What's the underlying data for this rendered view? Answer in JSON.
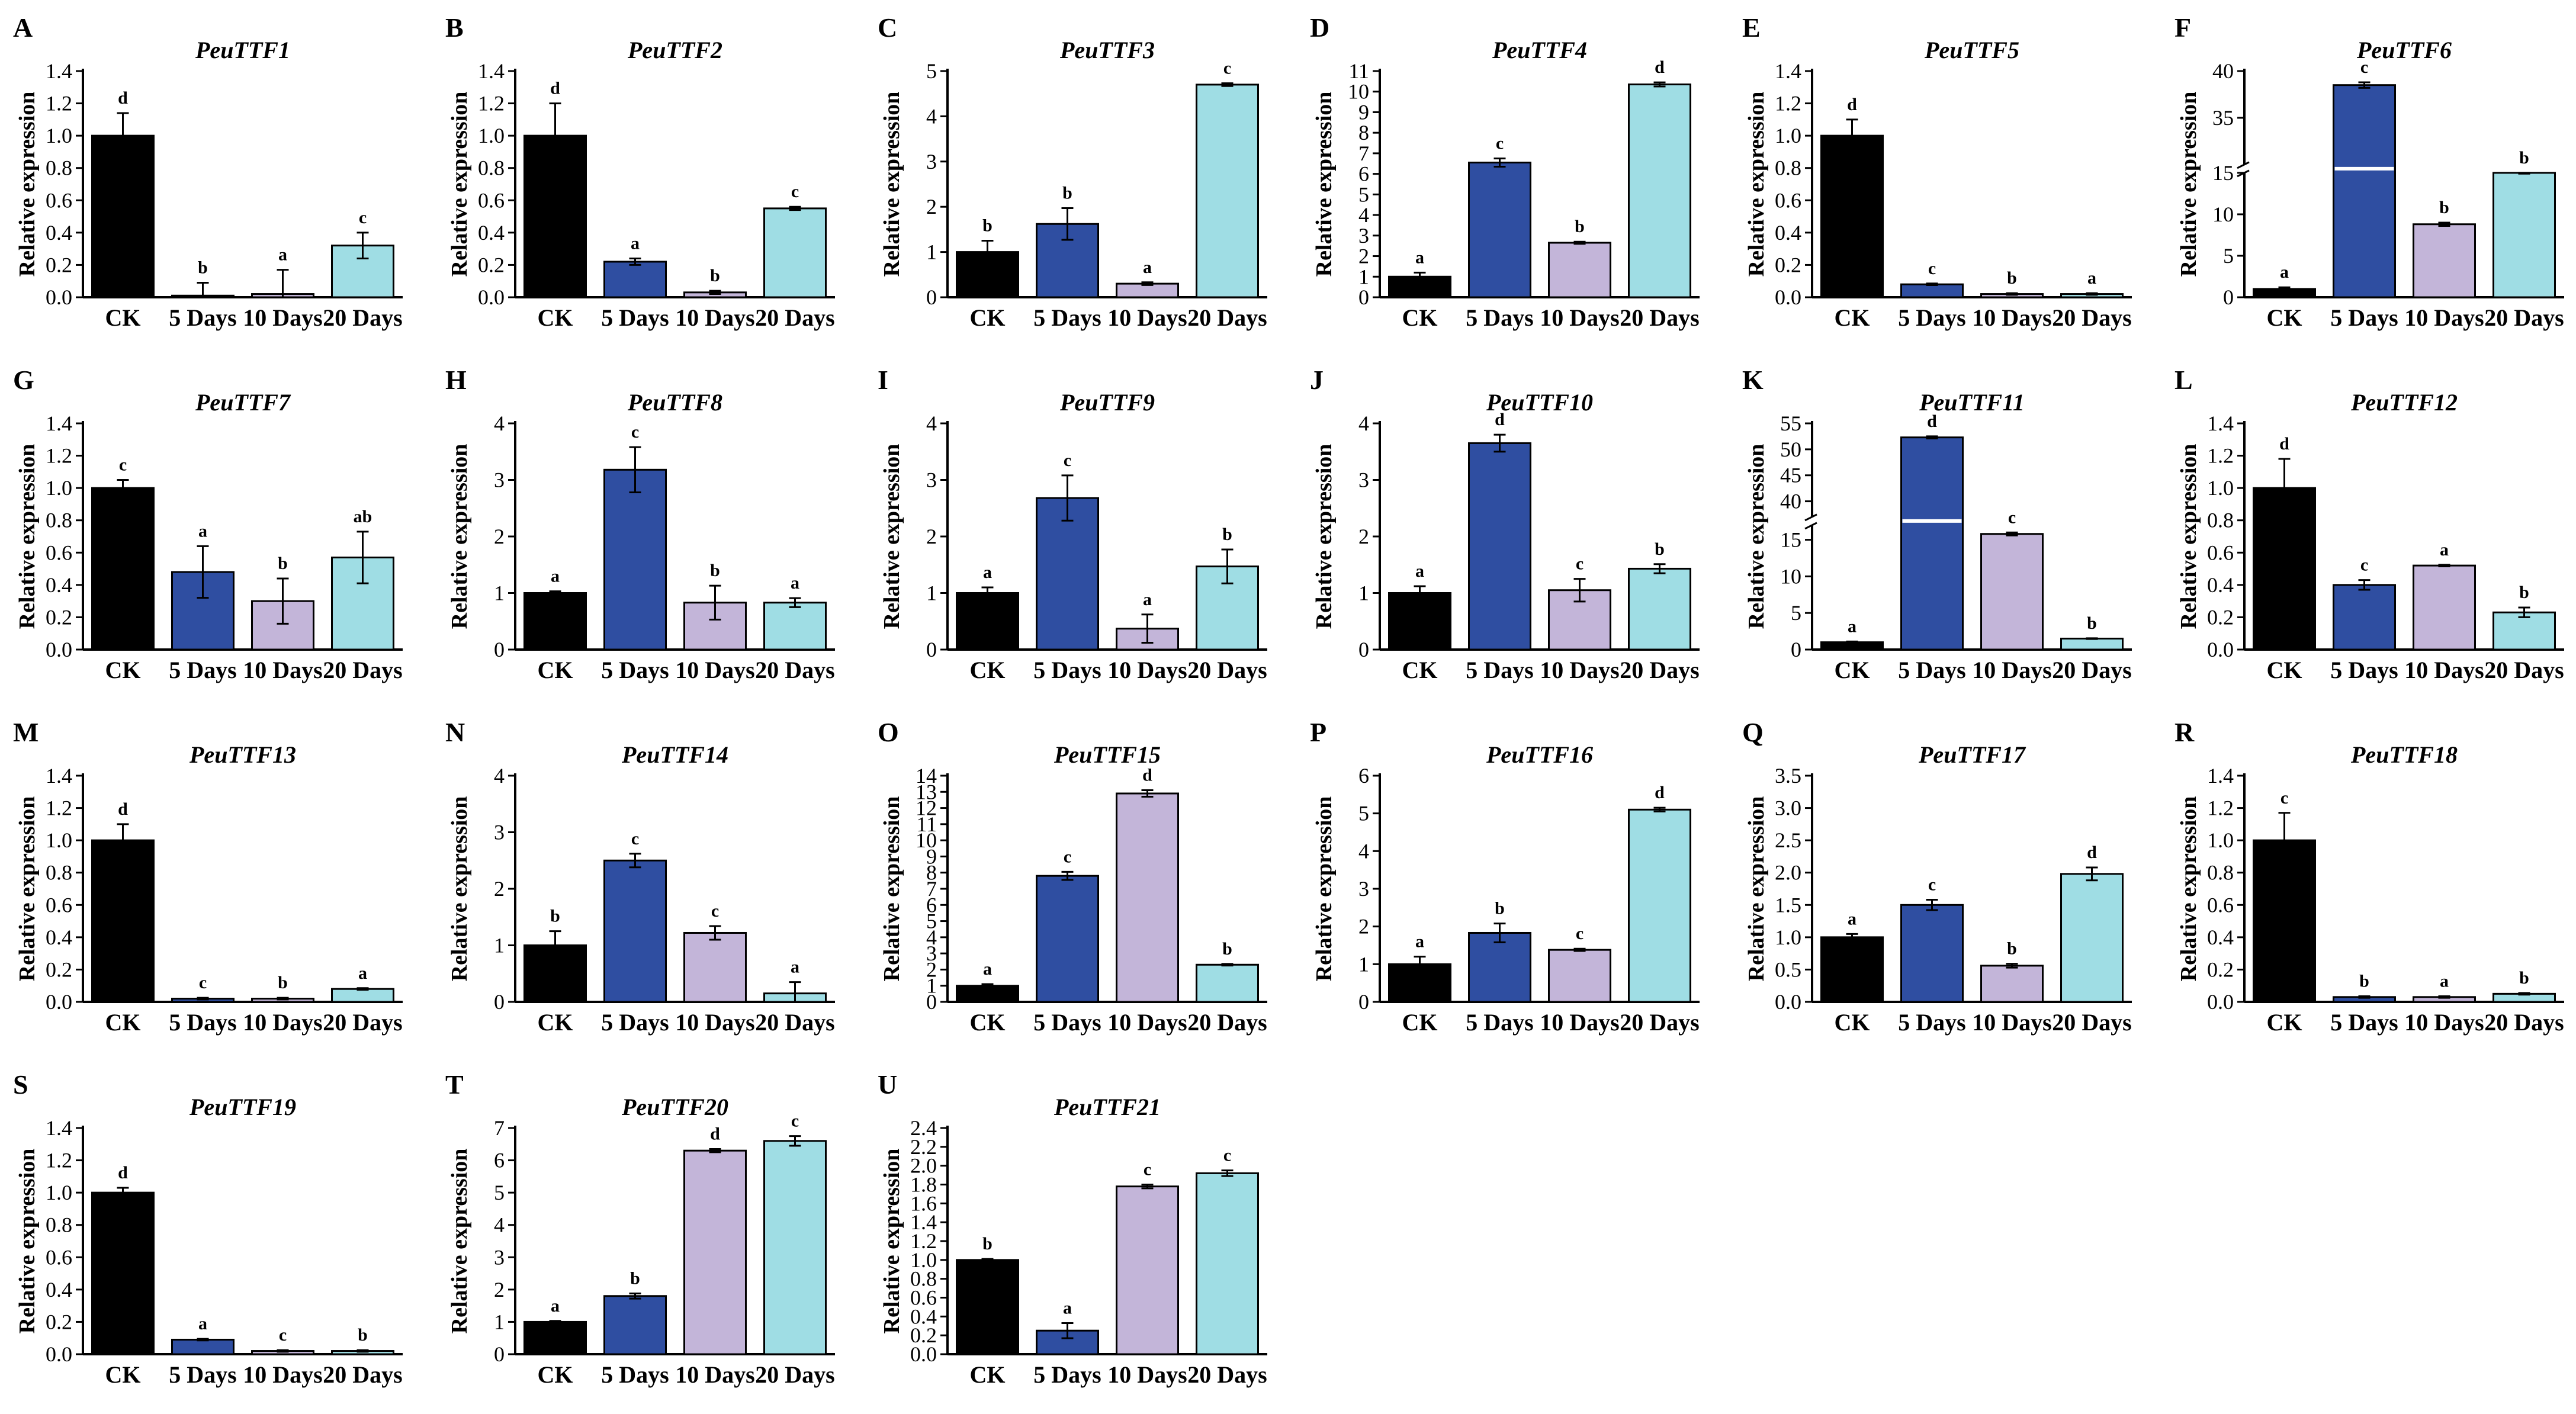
{
  "figure": {
    "colors": [
      "#000000",
      "#2f4ea1",
      "#c3b5d9",
      "#9fdde4"
    ],
    "panel_letters": [
      "A",
      "B",
      "C",
      "D",
      "E",
      "F",
      "G",
      "H",
      "I",
      "J",
      "K",
      "L",
      "M",
      "N",
      "O",
      "P",
      "Q",
      "R",
      "S",
      "T",
      "U"
    ]
  },
  "chart_data": [
    {
      "panel": "A",
      "type": "bar",
      "title": "PeuTTF1",
      "ylabel": "Relative expression",
      "categories": [
        "CK",
        "5 Days",
        "10 Days",
        "20 Days"
      ],
      "values": [
        1.0,
        0.01,
        0.02,
        0.32
      ],
      "errors": [
        0.14,
        0.08,
        0.15,
        0.08
      ],
      "letters": [
        "d",
        "b",
        "a",
        "c"
      ],
      "ylim": [
        0,
        1.4
      ],
      "yticks": [
        0.0,
        0.2,
        0.4,
        0.6,
        0.8,
        1.0,
        1.2,
        1.4
      ],
      "ytick_labels": [
        "0.0",
        "0.2",
        "0.4",
        "0.6",
        "0.8",
        "1.0",
        "1.2",
        "1.4"
      ]
    },
    {
      "panel": "B",
      "type": "bar",
      "title": "PeuTTF2",
      "ylabel": "Relative expression",
      "categories": [
        "CK",
        "5 Days",
        "10 Days",
        "20 Days"
      ],
      "values": [
        1.0,
        0.22,
        0.03,
        0.55
      ],
      "errors": [
        0.2,
        0.02,
        0.01,
        0.01
      ],
      "letters": [
        "d",
        "a",
        "b",
        "c"
      ],
      "ylim": [
        0,
        1.4
      ],
      "yticks": [
        0.0,
        0.2,
        0.4,
        0.6,
        0.8,
        1.0,
        1.2,
        1.4
      ],
      "ytick_labels": [
        "0.0",
        "0.2",
        "0.4",
        "0.6",
        "0.8",
        "1.0",
        "1.2",
        "1.4"
      ]
    },
    {
      "panel": "C",
      "type": "bar",
      "title": "PeuTTF3",
      "ylabel": "Relative expression",
      "categories": [
        "CK",
        "5 Days",
        "10 Days",
        "20 Days"
      ],
      "values": [
        1.0,
        1.62,
        0.3,
        4.7
      ],
      "errors": [
        0.25,
        0.35,
        0.03,
        0.03
      ],
      "letters": [
        "b",
        "b",
        "a",
        "c"
      ],
      "ylim": [
        0,
        5
      ],
      "yticks": [
        0,
        1,
        2,
        3,
        4,
        5
      ],
      "ytick_labels": [
        "0",
        "1",
        "2",
        "3",
        "4",
        "5"
      ]
    },
    {
      "panel": "D",
      "type": "bar",
      "title": "PeuTTF4",
      "ylabel": "Relative expression",
      "categories": [
        "CK",
        "5 Days",
        "10 Days",
        "20 Days"
      ],
      "values": [
        1.0,
        6.55,
        2.65,
        10.35
      ],
      "errors": [
        0.2,
        0.2,
        0.05,
        0.1
      ],
      "letters": [
        "a",
        "c",
        "b",
        "d"
      ],
      "ylim": [
        0,
        11
      ],
      "yticks": [
        0,
        1,
        2,
        3,
        4,
        5,
        6,
        7,
        8,
        9,
        10,
        11
      ],
      "ytick_labels": [
        "0",
        "1",
        "2",
        "3",
        "4",
        "5",
        "6",
        "7",
        "8",
        "9",
        "10",
        "11"
      ]
    },
    {
      "panel": "E",
      "type": "bar",
      "title": "PeuTTF5",
      "ylabel": "Relative expression",
      "categories": [
        "CK",
        "5 Days",
        "10 Days",
        "20 Days"
      ],
      "values": [
        1.0,
        0.08,
        0.02,
        0.02
      ],
      "errors": [
        0.1,
        0.005,
        0.005,
        0.005
      ],
      "letters": [
        "d",
        "c",
        "b",
        "a"
      ],
      "ylim": [
        0,
        1.4
      ],
      "yticks": [
        0.0,
        0.2,
        0.4,
        0.6,
        0.8,
        1.0,
        1.2,
        1.4
      ],
      "ytick_labels": [
        "0.0",
        "0.2",
        "0.4",
        "0.6",
        "0.8",
        "1.0",
        "1.2",
        "1.4"
      ]
    },
    {
      "panel": "F",
      "type": "bar",
      "title": "PeuTTF6",
      "ylabel": "Relative expression",
      "categories": [
        "CK",
        "5 Days",
        "10 Days",
        "20 Days"
      ],
      "values": [
        1.0,
        38.5,
        8.8,
        15.0
      ],
      "errors": [
        0.2,
        0.3,
        0.2,
        0.1
      ],
      "letters": [
        "a",
        "c",
        "b",
        "b"
      ],
      "ylim": [
        0,
        40
      ],
      "axis_break": [
        15,
        30
      ],
      "yticks": [
        0,
        5,
        10,
        15,
        35,
        40
      ],
      "ytick_labels": [
        "0",
        "5",
        "10",
        "15",
        "35",
        "40"
      ]
    },
    {
      "panel": "G",
      "type": "bar",
      "title": "PeuTTF7",
      "ylabel": "Relative expression",
      "categories": [
        "CK",
        "5 Days",
        "10 Days",
        "20 Days"
      ],
      "values": [
        1.0,
        0.48,
        0.3,
        0.57
      ],
      "errors": [
        0.05,
        0.16,
        0.14,
        0.16
      ],
      "letters": [
        "c",
        "a",
        "b",
        "ab"
      ],
      "ylim": [
        0,
        1.4
      ],
      "yticks": [
        0.0,
        0.2,
        0.4,
        0.6,
        0.8,
        1.0,
        1.2,
        1.4
      ],
      "ytick_labels": [
        "0.0",
        "0.2",
        "0.4",
        "0.6",
        "0.8",
        "1.0",
        "1.2",
        "1.4"
      ]
    },
    {
      "panel": "H",
      "type": "bar",
      "title": "PeuTTF8",
      "ylabel": "Relative expression",
      "categories": [
        "CK",
        "5 Days",
        "10 Days",
        "20 Days"
      ],
      "values": [
        1.0,
        3.18,
        0.83,
        0.83
      ],
      "errors": [
        0.03,
        0.4,
        0.3,
        0.08
      ],
      "letters": [
        "a",
        "c",
        "b",
        "a"
      ],
      "ylim": [
        0,
        4
      ],
      "yticks": [
        0,
        1,
        2,
        3,
        4
      ],
      "ytick_labels": [
        "0",
        "1",
        "2",
        "3",
        "4"
      ]
    },
    {
      "panel": "I",
      "type": "bar",
      "title": "PeuTTF9",
      "ylabel": "Relative expression",
      "categories": [
        "CK",
        "5 Days",
        "10 Days",
        "20 Days"
      ],
      "values": [
        1.0,
        2.68,
        0.37,
        1.47
      ],
      "errors": [
        0.1,
        0.4,
        0.25,
        0.3
      ],
      "letters": [
        "a",
        "c",
        "a",
        "b"
      ],
      "ylim": [
        0,
        4
      ],
      "yticks": [
        0,
        1,
        2,
        3,
        4
      ],
      "ytick_labels": [
        "0",
        "1",
        "2",
        "3",
        "4"
      ]
    },
    {
      "panel": "J",
      "type": "bar",
      "title": "PeuTTF10",
      "ylabel": "Relative expression",
      "categories": [
        "CK",
        "5 Days",
        "10 Days",
        "20 Days"
      ],
      "values": [
        1.0,
        3.65,
        1.05,
        1.43
      ],
      "errors": [
        0.12,
        0.15,
        0.2,
        0.08
      ],
      "letters": [
        "a",
        "d",
        "c",
        "b"
      ],
      "ylim": [
        0,
        4
      ],
      "yticks": [
        0,
        1,
        2,
        3,
        4
      ],
      "ytick_labels": [
        "0",
        "1",
        "2",
        "3",
        "4"
      ]
    },
    {
      "panel": "K",
      "type": "bar",
      "title": "PeuTTF11",
      "ylabel": "Relative expression",
      "categories": [
        "CK",
        "5 Days",
        "10 Days",
        "20 Days"
      ],
      "values": [
        1.0,
        52.3,
        15.8,
        1.5
      ],
      "errors": [
        0.1,
        0.2,
        0.2,
        0.05
      ],
      "letters": [
        "a",
        "d",
        "c",
        "b"
      ],
      "ylim": [
        0,
        55
      ],
      "axis_break": [
        17,
        37
      ],
      "yticks": [
        0,
        5,
        10,
        15,
        40,
        45,
        50,
        55
      ],
      "ytick_labels": [
        "0",
        "5",
        "10",
        "15",
        "40",
        "45",
        "50",
        "55"
      ]
    },
    {
      "panel": "L",
      "type": "bar",
      "title": "PeuTTF12",
      "ylabel": "Relative expression",
      "categories": [
        "CK",
        "5 Days",
        "10 Days",
        "20 Days"
      ],
      "values": [
        1.0,
        0.4,
        0.52,
        0.23
      ],
      "errors": [
        0.18,
        0.03,
        0.005,
        0.03
      ],
      "letters": [
        "d",
        "c",
        "a",
        "b"
      ],
      "ylim": [
        0,
        1.4
      ],
      "yticks": [
        0.0,
        0.2,
        0.4,
        0.6,
        0.8,
        1.0,
        1.2,
        1.4
      ],
      "ytick_labels": [
        "0.0",
        "0.2",
        "0.4",
        "0.6",
        "0.8",
        "1.0",
        "1.2",
        "1.4"
      ]
    },
    {
      "panel": "M",
      "type": "bar",
      "title": "PeuTTF13",
      "ylabel": "Relative expression",
      "categories": [
        "CK",
        "5 Days",
        "10 Days",
        "20 Days"
      ],
      "values": [
        1.0,
        0.02,
        0.02,
        0.08
      ],
      "errors": [
        0.1,
        0.005,
        0.005,
        0.005
      ],
      "letters": [
        "d",
        "c",
        "b",
        "a"
      ],
      "ylim": [
        0,
        1.4
      ],
      "yticks": [
        0.0,
        0.2,
        0.4,
        0.6,
        0.8,
        1.0,
        1.2,
        1.4
      ],
      "ytick_labels": [
        "0.0",
        "0.2",
        "0.4",
        "0.6",
        "0.8",
        "1.0",
        "1.2",
        "1.4"
      ]
    },
    {
      "panel": "N",
      "type": "bar",
      "title": "PeuTTF14",
      "ylabel": "Relative expression",
      "categories": [
        "CK",
        "5 Days",
        "10 Days",
        "20 Days"
      ],
      "values": [
        1.0,
        2.5,
        1.22,
        0.15
      ],
      "errors": [
        0.25,
        0.12,
        0.12,
        0.2
      ],
      "letters": [
        "b",
        "c",
        "c",
        "a"
      ],
      "ylim": [
        0,
        4
      ],
      "yticks": [
        0,
        1,
        2,
        3,
        4
      ],
      "ytick_labels": [
        "0",
        "1",
        "2",
        "3",
        "4"
      ]
    },
    {
      "panel": "O",
      "type": "bar",
      "title": "PeuTTF15",
      "ylabel": "Relative expression",
      "categories": [
        "CK",
        "5 Days",
        "10 Days",
        "20 Days"
      ],
      "values": [
        1.0,
        7.8,
        12.9,
        2.3
      ],
      "errors": [
        0.1,
        0.25,
        0.2,
        0.05
      ],
      "letters": [
        "a",
        "c",
        "d",
        "b"
      ],
      "ylim": [
        0,
        14
      ],
      "yticks": [
        0,
        1,
        2,
        3,
        4,
        5,
        6,
        7,
        8,
        9,
        10,
        11,
        12,
        13,
        14
      ],
      "ytick_labels": [
        "0",
        "1",
        "2",
        "3",
        "4",
        "5",
        "6",
        "7",
        "8",
        "9",
        "10",
        "11",
        "12",
        "13",
        "14"
      ]
    },
    {
      "panel": "P",
      "type": "bar",
      "title": "PeuTTF16",
      "ylabel": "Relative expression",
      "categories": [
        "CK",
        "5 Days",
        "10 Days",
        "20 Days"
      ],
      "values": [
        1.0,
        1.83,
        1.38,
        5.1
      ],
      "errors": [
        0.2,
        0.25,
        0.03,
        0.05
      ],
      "letters": [
        "a",
        "b",
        "c",
        "d"
      ],
      "ylim": [
        0,
        6
      ],
      "yticks": [
        0,
        1,
        2,
        3,
        4,
        5,
        6
      ],
      "ytick_labels": [
        "0",
        "1",
        "2",
        "3",
        "4",
        "5",
        "6"
      ]
    },
    {
      "panel": "Q",
      "type": "bar",
      "title": "PeuTTF17",
      "ylabel": "Relative expression",
      "categories": [
        "CK",
        "5 Days",
        "10 Days",
        "20 Days"
      ],
      "values": [
        1.0,
        1.5,
        0.56,
        1.98
      ],
      "errors": [
        0.05,
        0.08,
        0.03,
        0.1
      ],
      "letters": [
        "a",
        "c",
        "b",
        "d"
      ],
      "ylim": [
        0,
        3.5
      ],
      "yticks": [
        0.0,
        0.5,
        1.0,
        1.5,
        2.0,
        2.5,
        3.0,
        3.5
      ],
      "ytick_labels": [
        "0.0",
        "0.5",
        "1.0",
        "1.5",
        "2.0",
        "2.5",
        "3.0",
        "3.5"
      ]
    },
    {
      "panel": "R",
      "type": "bar",
      "title": "PeuTTF18",
      "ylabel": "Relative expression",
      "categories": [
        "CK",
        "5 Days",
        "10 Days",
        "20 Days"
      ],
      "values": [
        1.0,
        0.03,
        0.03,
        0.05
      ],
      "errors": [
        0.17,
        0.005,
        0.005,
        0.005
      ],
      "letters": [
        "c",
        "b",
        "a",
        "b"
      ],
      "ylim": [
        0,
        1.4
      ],
      "yticks": [
        0.0,
        0.2,
        0.4,
        0.6,
        0.8,
        1.0,
        1.2,
        1.4
      ],
      "ytick_labels": [
        "0.0",
        "0.2",
        "0.4",
        "0.6",
        "0.8",
        "1.0",
        "1.2",
        "1.4"
      ]
    },
    {
      "panel": "S",
      "type": "bar",
      "title": "PeuTTF19",
      "ylabel": "Relative expression",
      "categories": [
        "CK",
        "5 Days",
        "10 Days",
        "20 Days"
      ],
      "values": [
        1.0,
        0.09,
        0.02,
        0.02
      ],
      "errors": [
        0.03,
        0.005,
        0.005,
        0.005
      ],
      "letters": [
        "d",
        "a",
        "c",
        "b"
      ],
      "ylim": [
        0,
        1.4
      ],
      "yticks": [
        0.0,
        0.2,
        0.4,
        0.6,
        0.8,
        1.0,
        1.2,
        1.4
      ],
      "ytick_labels": [
        "0.0",
        "0.2",
        "0.4",
        "0.6",
        "0.8",
        "1.0",
        "1.2",
        "1.4"
      ]
    },
    {
      "panel": "T",
      "type": "bar",
      "title": "PeuTTF20",
      "ylabel": "Relative expression",
      "categories": [
        "CK",
        "5 Days",
        "10 Days",
        "20 Days"
      ],
      "values": [
        1.0,
        1.8,
        6.3,
        6.6
      ],
      "errors": [
        0.03,
        0.08,
        0.05,
        0.15
      ],
      "letters": [
        "a",
        "b",
        "d",
        "c"
      ],
      "ylim": [
        0,
        7
      ],
      "yticks": [
        0,
        1,
        2,
        3,
        4,
        5,
        6,
        7
      ],
      "ytick_labels": [
        "0",
        "1",
        "2",
        "3",
        "4",
        "5",
        "6",
        "7"
      ]
    },
    {
      "panel": "U",
      "type": "bar",
      "title": "PeuTTF21",
      "ylabel": "Relative expression",
      "categories": [
        "CK",
        "5 Days",
        "10 Days",
        "20 Days"
      ],
      "values": [
        1.0,
        0.25,
        1.78,
        1.92
      ],
      "errors": [
        0.01,
        0.08,
        0.02,
        0.03
      ],
      "letters": [
        "b",
        "a",
        "c",
        "c"
      ],
      "ylim": [
        0,
        2.4
      ],
      "yticks": [
        0.0,
        0.2,
        0.4,
        0.6,
        0.8,
        1.0,
        1.2,
        1.4,
        1.6,
        1.8,
        2.0,
        2.2,
        2.4
      ],
      "ytick_labels": [
        "0.0",
        "0.2",
        "0.4",
        "0.6",
        "0.8",
        "1.0",
        "1.2",
        "1.4",
        "1.6",
        "1.8",
        "2.0",
        "2.2",
        "2.4"
      ]
    }
  ]
}
